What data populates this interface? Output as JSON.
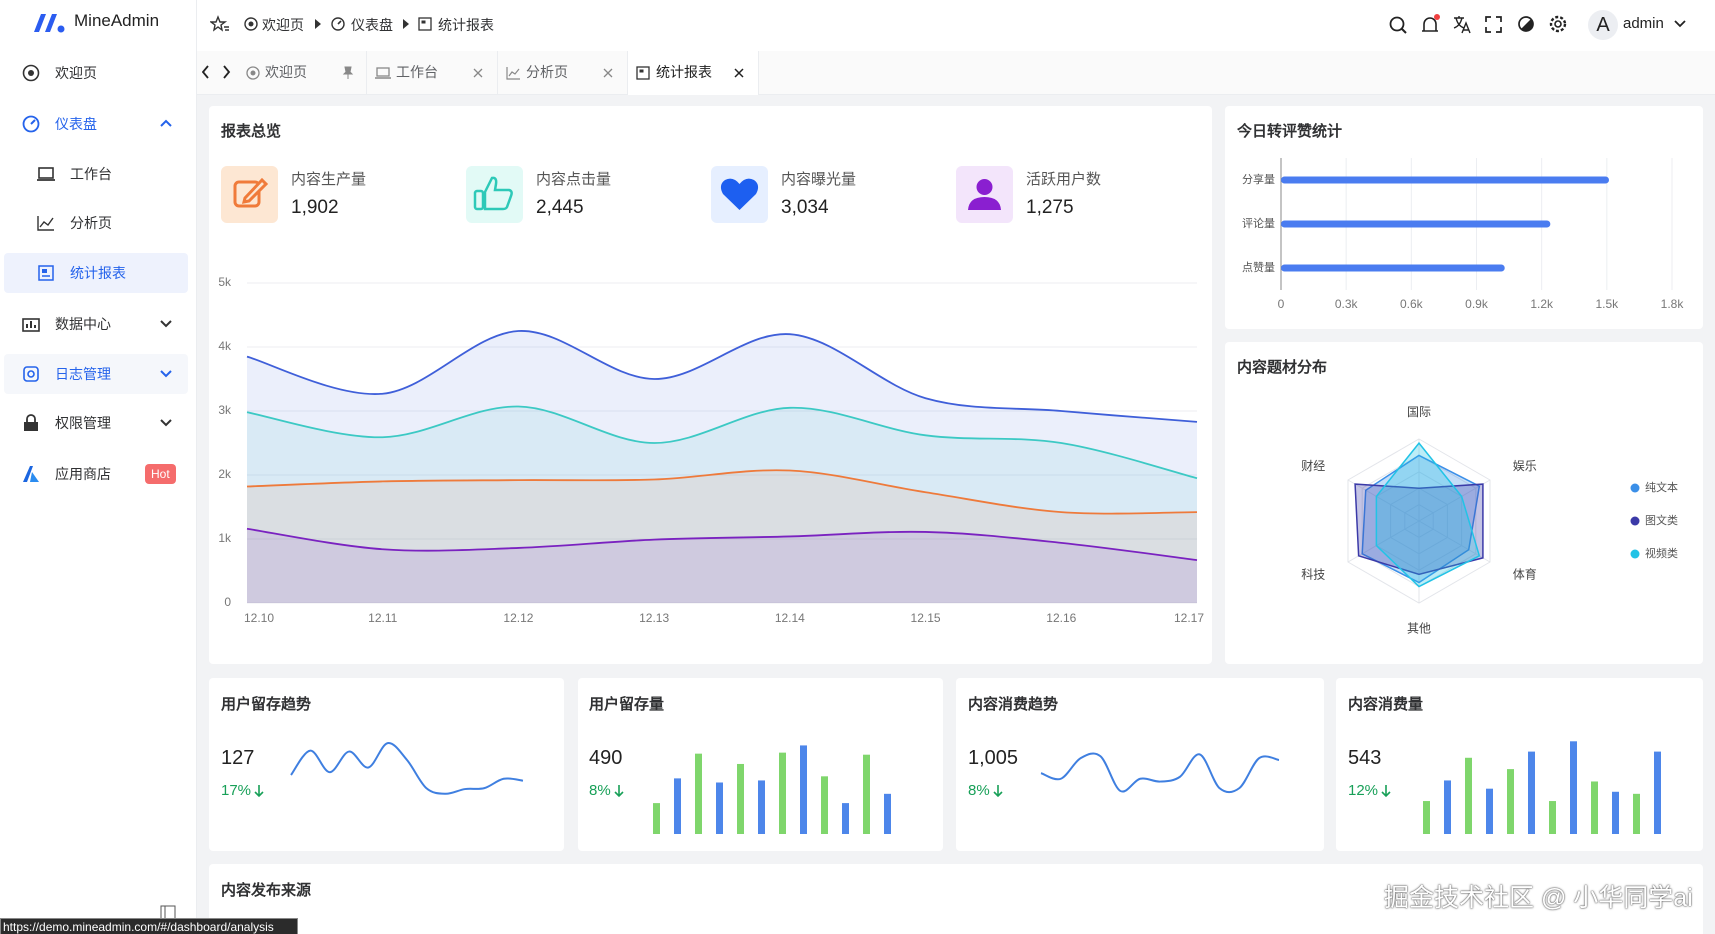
{
  "sidebar": {
    "brand": "MineAdmin",
    "menu": [
      "欢迎页",
      "仪表盘",
      "工作台",
      "分析页",
      "统计报表",
      "数据中心",
      "日志管理",
      "权限管理",
      "应用商店"
    ],
    "badge": "Hot"
  },
  "header": {
    "breadcrumb": [
      "欢迎页",
      "仪表盘",
      "统计报表"
    ],
    "avatar": "A",
    "user": "admin"
  },
  "tabs": [
    "欢迎页",
    "工作台",
    "分析页",
    "统计报表"
  ],
  "overview": {
    "title": "报表总览",
    "stats": [
      {
        "label": "内容生产量",
        "value": "1,902"
      },
      {
        "label": "内容点击量",
        "value": "2,445"
      },
      {
        "label": "内容曝光量",
        "value": "3,034"
      },
      {
        "label": "活跃用户数",
        "value": "1,275"
      }
    ]
  },
  "chart_data": [
    {
      "type": "line",
      "area": true,
      "grid": true,
      "categories": [
        "12.10",
        "12.11",
        "12.12",
        "12.13",
        "12.14",
        "12.15",
        "12.16",
        "12.17"
      ],
      "series": [
        {
          "color": "#3f5fd9",
          "values": [
            3850,
            3270,
            4250,
            3500,
            4200,
            3200,
            3000,
            2830
          ]
        },
        {
          "color": "#3cc9c4",
          "values": [
            2980,
            2590,
            3070,
            2500,
            3050,
            2620,
            2500,
            1950
          ]
        },
        {
          "color": "#ee7a3b",
          "values": [
            1820,
            1900,
            1920,
            1930,
            2070,
            1730,
            1420,
            1420
          ]
        },
        {
          "color": "#7a22c0",
          "values": [
            1160,
            840,
            860,
            990,
            1040,
            1110,
            940,
            670
          ]
        }
      ],
      "ylim": [
        0,
        5000
      ],
      "yticks": [
        0,
        {
          "value": 1000,
          "label": "1k"
        },
        {
          "value": 2000,
          "label": "2k"
        },
        {
          "value": 3000,
          "label": "3k"
        },
        {
          "value": 4000,
          "label": "4k"
        },
        {
          "value": 5000,
          "label": "5k"
        }
      ]
    },
    {
      "type": "bar",
      "horizontal": true,
      "grid": true,
      "title": "今日转评赞统计",
      "categories": [
        "分享量",
        "评论量",
        "点赞量"
      ],
      "values": [
        1510,
        1240,
        1030
      ],
      "color": "#4a7cf0",
      "xlim": [
        0,
        1800
      ],
      "xticks": [
        0,
        {
          "value": 300,
          "label": "0.3k"
        },
        {
          "value": 600,
          "label": "0.6k"
        },
        {
          "value": 900,
          "label": "0.9k"
        },
        {
          "value": 1200,
          "label": "1.2k"
        },
        {
          "value": 1500,
          "label": "1.5k"
        },
        {
          "value": 1800,
          "label": "1.8k"
        }
      ]
    },
    {
      "type": "radar",
      "title": "内容题材分布",
      "legend": "right",
      "indicators": [
        "国际",
        "娱乐",
        "体育",
        "其他",
        "科技",
        "财经"
      ],
      "rlim": [
        0,
        100
      ],
      "series": [
        {
          "name": "纯文本",
          "color": "#3b8fe8",
          "values": [
            80,
            85,
            70,
            75,
            80,
            75
          ]
        },
        {
          "name": "图文类",
          "color": "#3b3aa8",
          "values": [
            40,
            90,
            90,
            65,
            85,
            90
          ]
        },
        {
          "name": "视频类",
          "color": "#22c3e6",
          "values": [
            95,
            60,
            85,
            80,
            60,
            60
          ]
        }
      ]
    },
    {
      "type": "line",
      "title": "用户留存趋势",
      "total": "127",
      "change": "17%",
      "color": "#3f7fe0",
      "values": [
        32,
        58,
        35,
        57,
        40,
        66,
        48,
        18,
        12,
        17,
        18,
        28,
        26
      ],
      "ylim": [
        0,
        80
      ]
    },
    {
      "type": "bar",
      "title": "用户留存量",
      "total": "490",
      "change": "8%",
      "values": [
        30,
        54,
        78,
        50,
        68,
        52,
        79,
        86,
        56,
        30,
        77,
        39
      ],
      "colors": [
        "#7fd66c",
        "#4d86ea",
        "#7fd66c",
        "#4d86ea",
        "#7fd66c",
        "#4d86ea",
        "#7fd66c",
        "#4d86ea",
        "#7fd66c",
        "#4d86ea",
        "#7fd66c",
        "#4d86ea"
      ],
      "ylim": [
        0,
        100
      ]
    },
    {
      "type": "line",
      "title": "内容消费趋势",
      "total": "1,005",
      "change": "8%",
      "color": "#3f7fe0",
      "values": [
        34,
        28,
        50,
        52,
        15,
        28,
        25,
        30,
        54,
        18,
        18,
        50,
        48
      ],
      "ylim": [
        0,
        80
      ]
    },
    {
      "type": "bar",
      "title": "内容消费量",
      "total": "543",
      "change": "12%",
      "values": [
        32,
        52,
        74,
        44,
        63,
        80,
        32,
        90,
        51,
        41,
        39,
        80
      ],
      "colors": [
        "#7fd66c",
        "#4d86ea",
        "#7fd66c",
        "#4d86ea",
        "#7fd66c",
        "#4d86ea",
        "#7fd66c",
        "#4d86ea",
        "#7fd66c",
        "#4d86ea",
        "#7fd66c",
        "#4d86ea"
      ],
      "ylim": [
        0,
        100
      ]
    }
  ],
  "bottom_card": {
    "title": "内容发布来源"
  },
  "status_url": "https://demo.mineadmin.com/#/dashboard/analysis",
  "watermark": "掘金技术社区 @ 小华同学ai"
}
